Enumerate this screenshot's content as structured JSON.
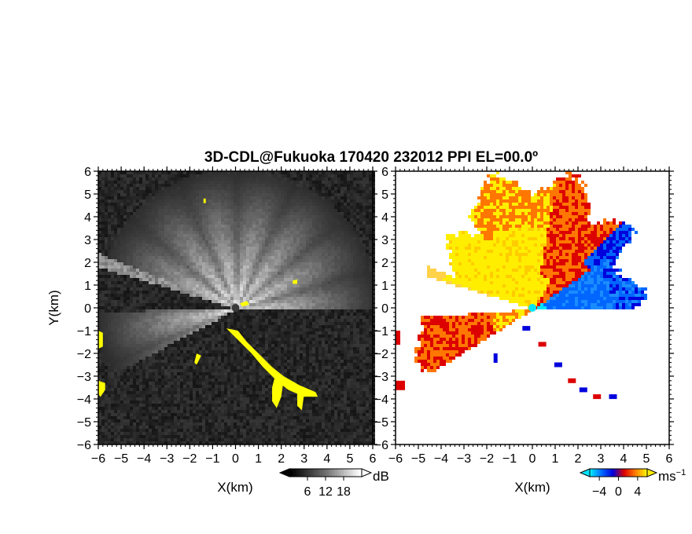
{
  "chart_data": [
    {
      "type": "heatmap",
      "title": "3D-CDL@Fukuoka 170420 232012 PPI EL=00.0º",
      "xlabel": "X(km)",
      "ylabel": "Y(km)",
      "xlim": [
        -6,
        6
      ],
      "ylim": [
        -6,
        6
      ],
      "xticks": [
        "-6",
        "-5",
        "-4",
        "-3",
        "-2",
        "-1",
        "0",
        "1",
        "2",
        "3",
        "4",
        "5",
        "6"
      ],
      "yticks": [
        "6",
        "5",
        "4",
        "3",
        "2",
        "1",
        "0",
        "-1",
        "-2",
        "-3",
        "-4",
        "-5",
        "-6"
      ],
      "colorbar": {
        "unit": "dB",
        "ticks": [
          "6",
          "12",
          "18"
        ],
        "values": [
          6,
          12,
          18
        ],
        "range": [
          0,
          24
        ]
      },
      "palette": [
        "#000000",
        "#ffffff"
      ],
      "mask_color": "#ffff00"
    },
    {
      "type": "heatmap",
      "xlabel": "X(km)",
      "xlim": [
        -6,
        6
      ],
      "ylim": [
        -6,
        6
      ],
      "xticks": [
        "-6",
        "-5",
        "-4",
        "-3",
        "-2",
        "-1",
        "0",
        "1",
        "2",
        "3",
        "4",
        "5",
        "6"
      ],
      "yticks": [
        "6",
        "5",
        "4",
        "3",
        "2",
        "1",
        "0",
        "-1",
        "-2",
        "-3",
        "-4",
        "-5",
        "-6"
      ],
      "colorbar": {
        "unit": "ms",
        "unit_exp": "-1",
        "ticks": [
          "-4",
          "0",
          "4"
        ],
        "values": [
          -4,
          0,
          4
        ],
        "range": [
          -6,
          6
        ]
      },
      "palette": [
        "#00e5ff",
        "#0066ff",
        "#0000dd",
        "#dd0000",
        "#ff7700",
        "#ffee00"
      ]
    }
  ]
}
